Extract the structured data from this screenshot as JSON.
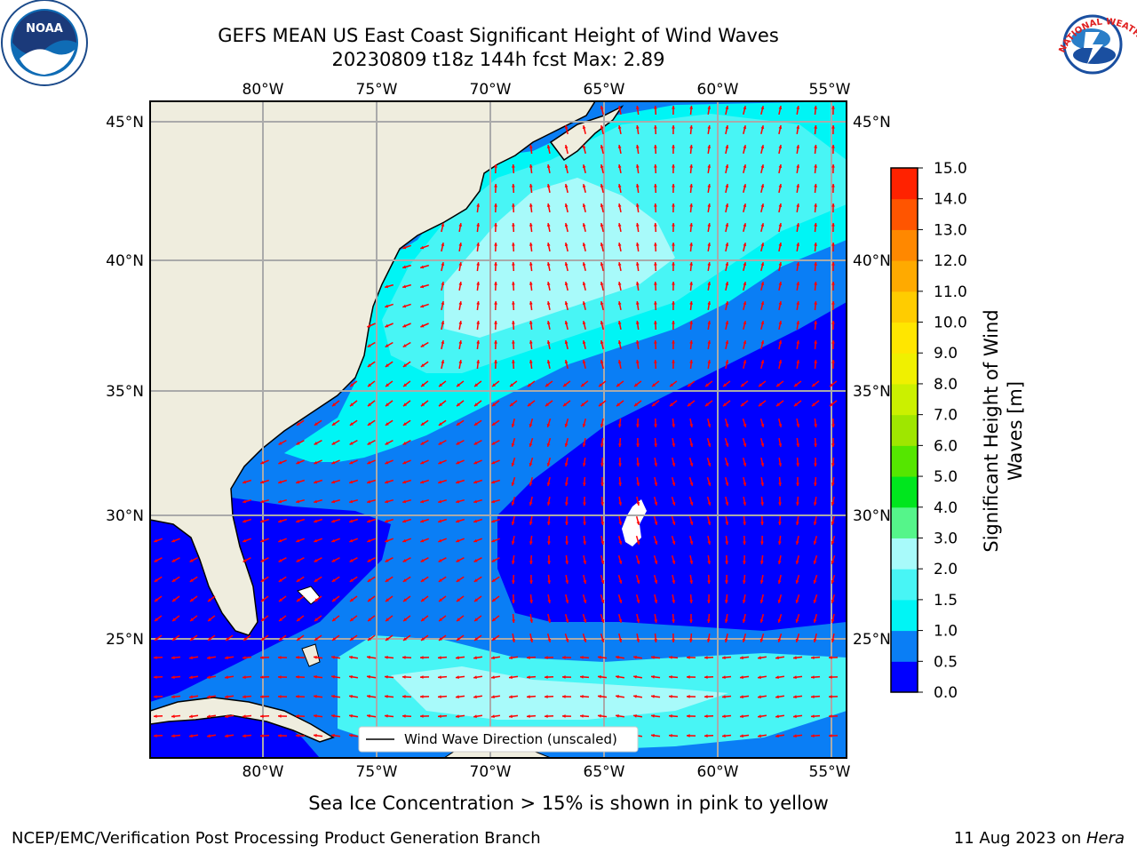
{
  "title": {
    "line1": "GEFS MEAN US East Coast Significant Height of Wind Waves",
    "line2": "20230809 t18z 144h fcst   Max: 2.89"
  },
  "map": {
    "lon_labels": [
      "80°W",
      "75°W",
      "70°W",
      "65°W",
      "60°W",
      "55°W"
    ],
    "lat_labels": [
      "45°N",
      "40°N",
      "35°N",
      "30°N",
      "25°N"
    ],
    "legend_label": "Wind Wave Direction (unscaled)",
    "arrow_color": "#ff0000",
    "land_color": "#efedde"
  },
  "colorbar": {
    "label_line1": "Significant Height of Wind",
    "label_line2": "Waves [m]",
    "ticks": [
      "0.0",
      "0.5",
      "1.0",
      "1.5",
      "2.0",
      "3.0",
      "4.0",
      "5.0",
      "6.0",
      "7.0",
      "8.0",
      "9.0",
      "10.0",
      "11.0",
      "12.0",
      "13.0",
      "14.0",
      "15.0"
    ],
    "colors": [
      "#0000ff",
      "#0a7ef5",
      "#00f5f5",
      "#48f5f5",
      "#a8fafa",
      "#55f58a",
      "#00e61e",
      "#55e600",
      "#9fe600",
      "#cbf000",
      "#f0f000",
      "#ffe600",
      "#ffcc00",
      "#ffaa00",
      "#ff8800",
      "#ff5500",
      "#ff2200",
      "#ff0000"
    ]
  },
  "sea_ice_note": "Sea Ice Concentration > 15% is shown in pink to yellow",
  "footer": {
    "left": "NCEP/EMC/Verification Post Processing Product Generation Branch",
    "right_date": "11 Aug 2023 on ",
    "right_host": "Hera"
  },
  "logos": {
    "noaa": "NOAA",
    "nws": "NATIONAL WEATHER SERVICE"
  }
}
